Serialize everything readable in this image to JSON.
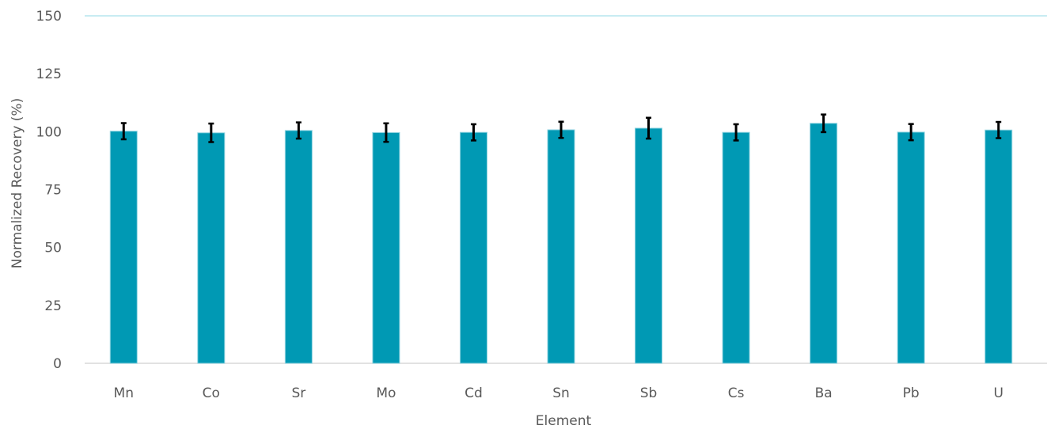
{
  "chart_data": {
    "type": "bar",
    "title": "",
    "xlabel": "Element",
    "ylabel": "Normalized Recovery (%)",
    "ylim": [
      0,
      150
    ],
    "yticks": [
      0,
      25,
      50,
      75,
      100,
      125,
      150
    ],
    "grid": false,
    "legend": "none",
    "categories": [
      "Mn",
      "Co",
      "Sr",
      "Mo",
      "Cd",
      "Sn",
      "Sb",
      "Cs",
      "Ba",
      "Pb",
      "U"
    ],
    "series": [
      {
        "values": [
          100.2,
          99.5,
          100.5,
          99.6,
          99.7,
          100.8,
          101.5,
          99.7,
          103.6,
          99.8,
          100.7
        ],
        "error": [
          3.5,
          4.0,
          3.5,
          4.0,
          3.5,
          3.5,
          4.5,
          3.5,
          3.8,
          3.5,
          3.5
        ]
      }
    ],
    "colors": {
      "bar": "#0099B4",
      "bar_edge": "#8FD3E0",
      "error_bar": "#000000",
      "axis_line": "#D9D9D9",
      "plot_border": "#C8ECF2",
      "text": "#595959"
    }
  }
}
